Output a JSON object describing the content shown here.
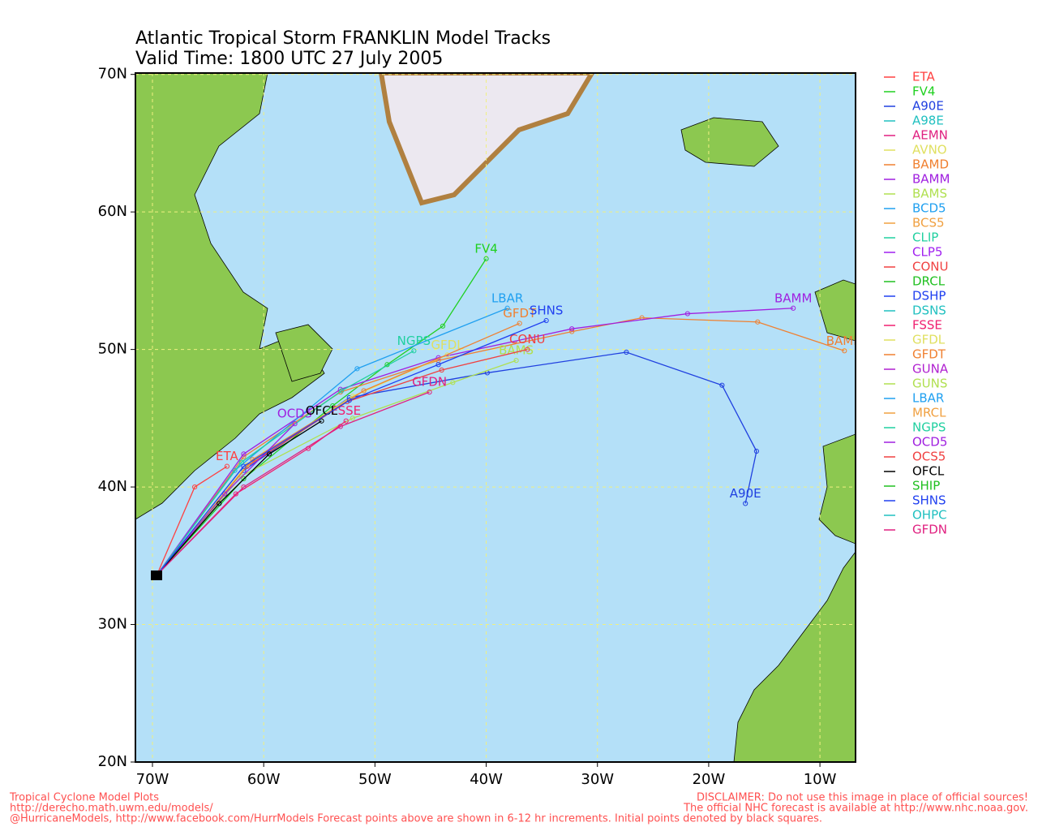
{
  "chart_data": {
    "type": "track-map",
    "title": "Atlantic Tropical Storm FRANKLIN Model Tracks",
    "subtitle": "Valid Time: 1800 UTC 27 July 2005",
    "xlim": [
      -71.53,
      -6.8
    ],
    "ylim": [
      20,
      70.1
    ],
    "grid": true,
    "xticks": [
      {
        "value": -70,
        "label": "70W"
      },
      {
        "value": -60,
        "label": "60W"
      },
      {
        "value": -50,
        "label": "50W"
      },
      {
        "value": -40,
        "label": "40W"
      },
      {
        "value": -30,
        "label": "30W"
      },
      {
        "value": -20,
        "label": "20W"
      },
      {
        "value": -10,
        "label": "10W"
      }
    ],
    "yticks": [
      {
        "value": 20,
        "label": "20N"
      },
      {
        "value": 30,
        "label": "30N"
      },
      {
        "value": 40,
        "label": "40N"
      },
      {
        "value": 50,
        "label": "50N"
      },
      {
        "value": 60,
        "label": "60N"
      },
      {
        "value": 70,
        "label": "70N"
      }
    ],
    "series": [
      {
        "name": "ETA",
        "color": "#ff4040",
        "x": [
          -69.6,
          -66.2,
          -63.3
        ],
        "y": [
          33.6,
          40.0,
          41.5
        ]
      },
      {
        "name": "FV4",
        "color": "#20d020",
        "x": [
          -69.6,
          -61.8,
          -53.8,
          -48.9,
          -43.9,
          -40.0
        ],
        "y": [
          33.6,
          40.6,
          45.9,
          48.9,
          51.7,
          56.6
        ]
      },
      {
        "name": "A90E",
        "color": "#2040e0",
        "x": [
          -69.6,
          -61.8,
          -52.3,
          -39.9,
          -27.4,
          -18.8,
          -15.7,
          -16.7
        ],
        "y": [
          33.6,
          41.2,
          46.5,
          48.3,
          49.8,
          47.4,
          42.6,
          38.8
        ]
      },
      {
        "name": "A98E",
        "color": "#20c0c0"
      },
      {
        "name": "AEMN",
        "color": "#e02080"
      },
      {
        "name": "AVNO",
        "color": "#e0e060"
      },
      {
        "name": "BAMD",
        "color": "#f08030",
        "x": [
          -69.6,
          -61.8,
          -53.1,
          -44.3,
          -32.3,
          -26.0,
          -15.6,
          -7.8
        ],
        "y": [
          33.6,
          42.2,
          46.9,
          49.2,
          51.3,
          52.3,
          52.0,
          49.9
        ]
      },
      {
        "name": "BAMM",
        "color": "#a020e0",
        "x": [
          -69.6,
          -61.8,
          -53.1,
          -44.3,
          -32.3,
          -21.9,
          -12.4
        ],
        "y": [
          33.6,
          42.4,
          47.1,
          49.4,
          51.5,
          52.6,
          53.0
        ]
      },
      {
        "name": "BAMS",
        "color": "#b0e050",
        "x": [
          -69.6,
          -62.0,
          -52.0,
          -43.0,
          -37.3
        ],
        "y": [
          33.6,
          40.8,
          45.0,
          47.6,
          49.2
        ]
      },
      {
        "name": "BCD5",
        "color": "#20a0f0"
      },
      {
        "name": "BCS5",
        "color": "#f0a040"
      },
      {
        "name": "CLIP",
        "color": "#20d0a0"
      },
      {
        "name": "CLP5",
        "color": "#a020f0"
      },
      {
        "name": "CONU",
        "color": "#f04040",
        "x": [
          -69.6,
          -61.5,
          -52.5,
          -44.0,
          -36.3
        ],
        "y": [
          33.6,
          41.5,
          46.2,
          48.5,
          50.0
        ]
      },
      {
        "name": "DRCL",
        "color": "#20c020"
      },
      {
        "name": "DSHP",
        "color": "#2040f0"
      },
      {
        "name": "DSNS",
        "color": "#20c0c0"
      },
      {
        "name": "FSSE",
        "color": "#f02070",
        "x": [
          -69.6,
          -62.5,
          -56.0,
          -52.6
        ],
        "y": [
          33.6,
          39.5,
          42.8,
          44.8
        ]
      },
      {
        "name": "GFDL",
        "color": "#e0e060",
        "x": [
          -69.6,
          -61.5,
          -52.0,
          -43.5
        ],
        "y": [
          33.6,
          41.6,
          46.6,
          49.6
        ]
      },
      {
        "name": "GFDT",
        "color": "#f08030",
        "x": [
          -69.6,
          -61.0,
          -51.0,
          -37.0
        ],
        "y": [
          33.6,
          42.0,
          47.0,
          51.9
        ]
      },
      {
        "name": "GUNA",
        "color": "#b020d0"
      },
      {
        "name": "GUNS",
        "color": "#b0e050"
      },
      {
        "name": "LBAR",
        "color": "#20a0f0",
        "x": [
          -69.6,
          -62.6,
          -51.6,
          -38.1
        ],
        "y": [
          33.6,
          41.2,
          48.6,
          53.0
        ]
      },
      {
        "name": "MRCL",
        "color": "#f0a040"
      },
      {
        "name": "NGPS",
        "color": "#20d0a0",
        "x": [
          -69.6,
          -62.0,
          -53.0,
          -46.5
        ],
        "y": [
          33.6,
          41.8,
          47.0,
          49.9
        ]
      },
      {
        "name": "OCD5",
        "color": "#a020e0",
        "x": [
          -69.6,
          -63.5,
          -57.2
        ],
        "y": [
          33.6,
          39.5,
          44.6
        ]
      },
      {
        "name": "OCS5",
        "color": "#f04040"
      },
      {
        "name": "OFCL",
        "color": "#000000",
        "x": [
          -69.6,
          -64.0,
          -59.5,
          -54.8
        ],
        "y": [
          33.6,
          38.8,
          42.4,
          44.8
        ]
      },
      {
        "name": "SHIP",
        "color": "#20c020"
      },
      {
        "name": "SHNS",
        "color": "#2040f0",
        "x": [
          -69.6,
          -61.8,
          -52.3,
          -44.3,
          -34.6
        ],
        "y": [
          33.6,
          41.5,
          46.3,
          48.9,
          52.1
        ]
      },
      {
        "name": "OHPC",
        "color": "#20c0c0"
      },
      {
        "name": "GFDN",
        "color": "#e02080",
        "x": [
          -69.6,
          -61.8,
          -53.1,
          -45.1
        ],
        "y": [
          33.6,
          40.0,
          44.4,
          46.9
        ]
      }
    ],
    "footer_left": [
      "Tropical Cyclone Model Plots",
      "http://derecho.math.uwm.edu/models/",
      "@HurricaneModels, http://www.facebook.com/HurrModels  Forecast points above are shown in 6-12 hr increments. Initial points denoted by black squares."
    ],
    "footer_right": [
      "DISCLAIMER: Do not use this image in place of official sources!",
      "The official NHC forecast is available at http://www.nhc.noaa.gov."
    ]
  }
}
